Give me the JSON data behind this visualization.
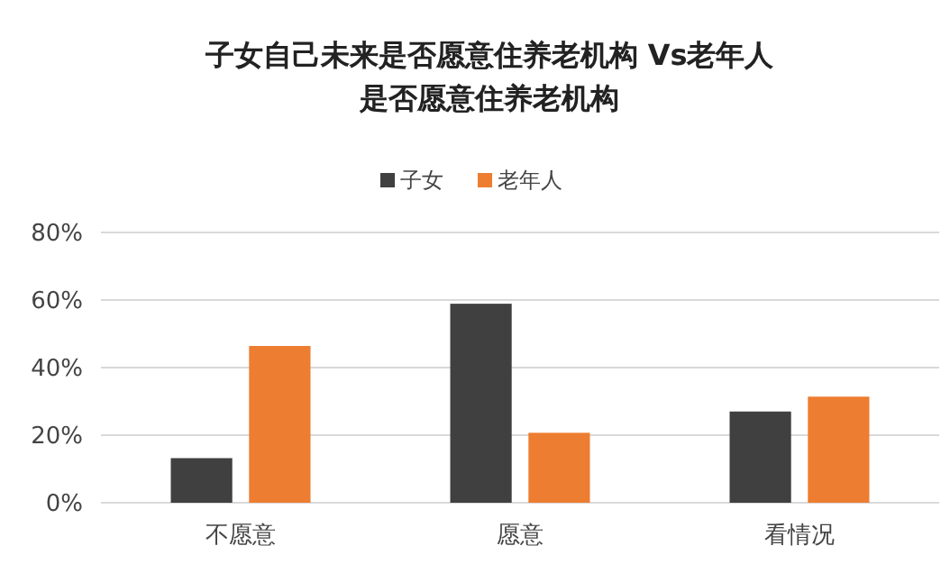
{
  "chart_data": {
    "type": "bar",
    "title": "子女自己未来是否愿意住养老机构 Vs老年人是否愿意住养老机构",
    "categories": [
      "不愿意",
      "愿意",
      "看情况"
    ],
    "series": [
      {
        "name": "子女",
        "color": "#404040",
        "values": [
          13.2,
          58.9,
          27.0
        ]
      },
      {
        "name": "老年人",
        "color": "#ed7d31",
        "values": [
          46.4,
          20.7,
          31.4
        ]
      }
    ],
    "ylim": [
      0,
      80
    ],
    "yticks": [
      {
        "value": 0,
        "label": "0%"
      },
      {
        "value": 20,
        "label": "20%"
      },
      {
        "value": 40,
        "label": "40%"
      },
      {
        "value": 60,
        "label": "60%"
      },
      {
        "value": 80,
        "label": "80%"
      }
    ],
    "grid": "y",
    "legend": "top"
  }
}
